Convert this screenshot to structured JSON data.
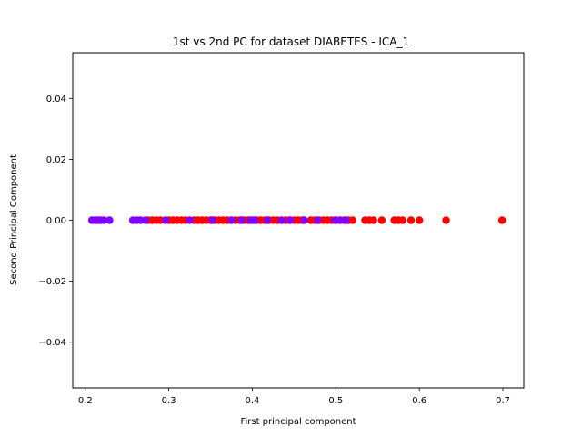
{
  "chart_data": {
    "type": "scatter",
    "title": "1st vs 2nd PC for dataset DIABETES - ICA_1",
    "xlabel": "First principal component",
    "ylabel": "Second Principal Component",
    "xlim": [
      0.185,
      0.725
    ],
    "ylim": [
      -0.055,
      0.055
    ],
    "xticks": [
      0.2,
      0.3,
      0.4,
      0.5,
      0.6,
      0.7
    ],
    "xtick_labels": [
      "0.2",
      "0.3",
      "0.4",
      "0.5",
      "0.6",
      "0.7"
    ],
    "yticks": [
      -0.04,
      -0.02,
      0.0,
      0.02,
      0.04
    ],
    "ytick_labels": [
      "−0.04",
      "−0.02",
      "0.00",
      "0.02",
      "0.04"
    ],
    "grid": false,
    "legend": "none",
    "series": [
      {
        "color": "#ff0000",
        "x": [
          0.275,
          0.28,
          0.285,
          0.29,
          0.3,
          0.305,
          0.31,
          0.315,
          0.32,
          0.33,
          0.335,
          0.34,
          0.345,
          0.35,
          0.355,
          0.36,
          0.365,
          0.37,
          0.38,
          0.385,
          0.39,
          0.395,
          0.4,
          0.405,
          0.41,
          0.415,
          0.42,
          0.425,
          0.43,
          0.44,
          0.445,
          0.45,
          0.455,
          0.46,
          0.47,
          0.475,
          0.48,
          0.485,
          0.49,
          0.495,
          0.5,
          0.51,
          0.515,
          0.52,
          0.535,
          0.54,
          0.545,
          0.555,
          0.57,
          0.575,
          0.58,
          0.59,
          0.6,
          0.632,
          0.699
        ],
        "y": [
          0,
          0,
          0,
          0,
          0,
          0,
          0,
          0,
          0,
          0,
          0,
          0,
          0,
          0,
          0,
          0,
          0,
          0,
          0,
          0,
          0,
          0,
          0,
          0,
          0,
          0,
          0,
          0,
          0,
          0,
          0,
          0,
          0,
          0,
          0,
          0,
          0,
          0,
          0,
          0,
          0,
          0,
          0,
          0,
          0,
          0,
          0,
          0,
          0,
          0,
          0,
          0,
          0,
          0,
          0
        ]
      },
      {
        "color": "#8000ff",
        "x": [
          0.208,
          0.212,
          0.215,
          0.218,
          0.222,
          0.229,
          0.257,
          0.262,
          0.266,
          0.272,
          0.296,
          0.325,
          0.352,
          0.375,
          0.387,
          0.398,
          0.403,
          0.418,
          0.435,
          0.445,
          0.462,
          0.478,
          0.499,
          0.505,
          0.512
        ],
        "y": [
          0,
          0,
          0,
          0,
          0,
          0,
          0,
          0,
          0,
          0,
          0,
          0,
          0,
          0,
          0,
          0,
          0,
          0,
          0,
          0,
          0,
          0,
          0,
          0,
          0
        ]
      }
    ]
  }
}
